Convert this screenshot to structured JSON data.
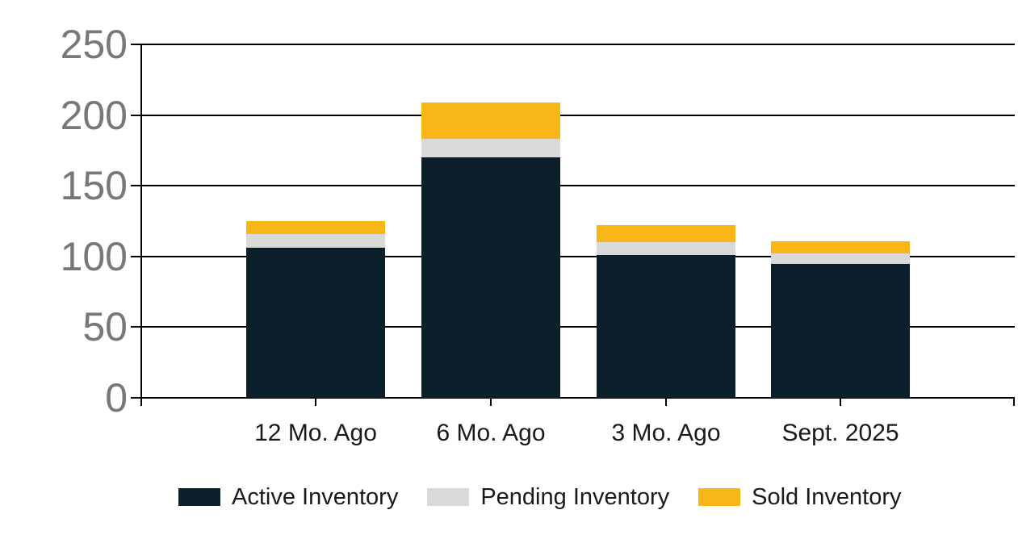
{
  "chart_data": {
    "type": "bar",
    "stacked": true,
    "title": "",
    "xlabel": "",
    "ylabel": "",
    "categories": [
      "12 Mo. Ago",
      "6 Mo. Ago",
      "3 Mo. Ago",
      "Sept. 2025"
    ],
    "series": [
      {
        "name": "Active Inventory",
        "color": "#0c202c",
        "values": [
          106,
          170,
          101,
          95
        ]
      },
      {
        "name": "Pending Inventory",
        "color": "#d9d9d9",
        "values": [
          10,
          13,
          9,
          7
        ]
      },
      {
        "name": "Sold Inventory",
        "color": "#f9b717",
        "values": [
          9,
          26,
          12,
          9
        ]
      }
    ],
    "totals": [
      125,
      209,
      122,
      111
    ],
    "ylim": [
      0,
      250
    ],
    "yticks": [
      0,
      50,
      100,
      150,
      200,
      250
    ],
    "grid": true,
    "legend_position": "bottom",
    "colors": {
      "axis_line": "#000000",
      "gridline": "#000000",
      "ytick_label": "#77787a",
      "xtick_label": "#1a1a1a",
      "legend_label": "#1a1a1a",
      "background": "#ffffff"
    }
  }
}
